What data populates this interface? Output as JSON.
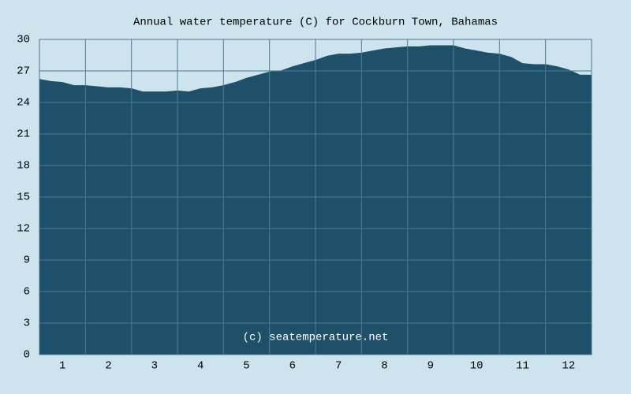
{
  "chart_data": {
    "type": "area",
    "title": "Annual water temperature (C) for Cockburn Town, Bahamas",
    "watermark": "(c) seatemperature.net",
    "color": "#1f5069",
    "x": [
      0,
      0.25,
      0.5,
      0.75,
      1,
      1.25,
      1.5,
      1.75,
      2,
      2.25,
      2.5,
      2.75,
      3,
      3.25,
      3.5,
      3.75,
      4,
      4.25,
      4.5,
      4.75,
      5,
      5.25,
      5.5,
      5.75,
      6,
      6.25,
      6.5,
      6.75,
      7,
      7.25,
      7.5,
      7.75,
      8,
      8.25,
      8.5,
      8.75,
      9,
      9.25,
      9.5,
      9.75,
      10,
      10.25,
      10.5,
      10.75,
      11,
      11.25,
      11.5,
      11.75,
      12
    ],
    "values": [
      26.2,
      26.0,
      25.9,
      25.6,
      25.6,
      25.5,
      25.4,
      25.4,
      25.3,
      25.0,
      25.0,
      25.0,
      25.1,
      25.0,
      25.3,
      25.4,
      25.6,
      25.9,
      26.3,
      26.6,
      26.9,
      27.0,
      27.4,
      27.7,
      28.0,
      28.4,
      28.6,
      28.6,
      28.7,
      28.9,
      29.1,
      29.2,
      29.3,
      29.3,
      29.4,
      29.4,
      29.4,
      29.1,
      28.9,
      28.7,
      28.6,
      28.3,
      27.7,
      27.6,
      27.6,
      27.4,
      27.1,
      26.6,
      26.6
    ],
    "xlim": [
      0,
      12
    ],
    "xticks": [
      {
        "value": 0.5,
        "label": "1"
      },
      {
        "value": 1.5,
        "label": "2"
      },
      {
        "value": 2.5,
        "label": "3"
      },
      {
        "value": 3.5,
        "label": "4"
      },
      {
        "value": 4.5,
        "label": "5"
      },
      {
        "value": 5.5,
        "label": "6"
      },
      {
        "value": 6.5,
        "label": "7"
      },
      {
        "value": 7.5,
        "label": "8"
      },
      {
        "value": 8.5,
        "label": "9"
      },
      {
        "value": 9.5,
        "label": "10"
      },
      {
        "value": 10.5,
        "label": "11"
      },
      {
        "value": 11.5,
        "label": "12"
      }
    ],
    "ylim": [
      0,
      30
    ],
    "yticks": [
      0,
      3,
      6,
      9,
      12,
      15,
      18,
      21,
      24,
      27,
      30
    ],
    "grid": true
  }
}
